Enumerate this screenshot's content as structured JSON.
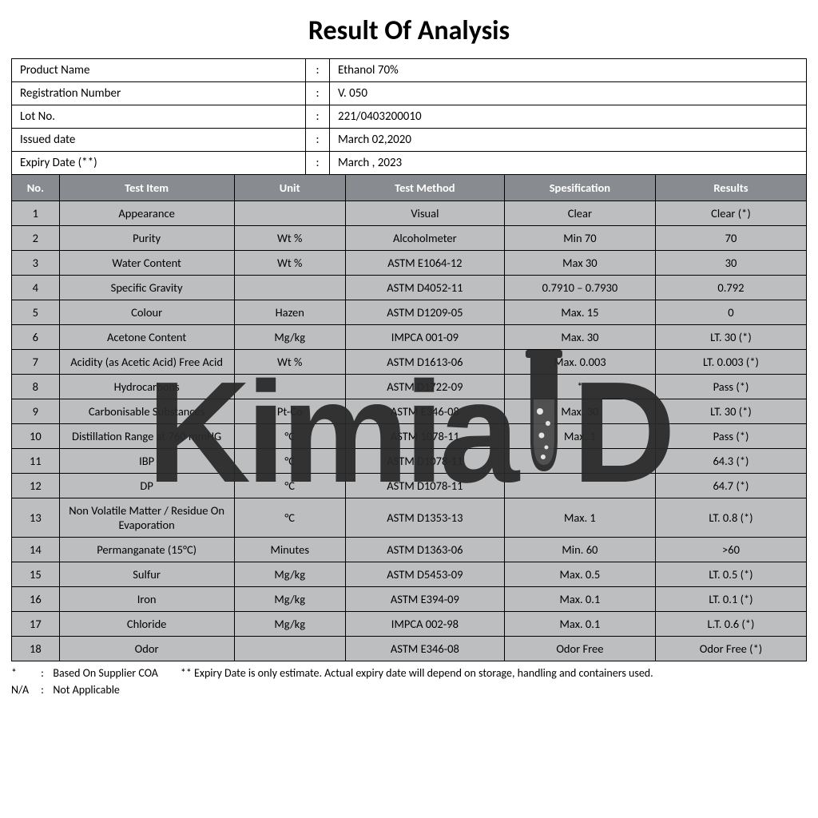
{
  "title": "Result Of Analysis",
  "info": {
    "product_name_label": "Product Name",
    "product_name": "Ethanol 70%",
    "reg_number_label": "Registration Number",
    "reg_number": "V. 050",
    "lot_no_label": "Lot No.",
    "lot_no": "221/0403200010",
    "issued_date_label": "Issued date",
    "issued_date": "March 02,2020",
    "expiry_date_label": "Expiry Date (**)",
    "expiry_date": "March , 2023"
  },
  "headers": {
    "no": "No.",
    "test_item": "Test Item",
    "unit": "Unit",
    "method": "Test Method",
    "spec": "Spesification",
    "results": "Results"
  },
  "rows": [
    {
      "no": "1",
      "item": "Appearance",
      "unit": "",
      "method": "Visual",
      "spec": "Clear",
      "result": "Clear (*)"
    },
    {
      "no": "2",
      "item": "Purity",
      "unit": "Wt %",
      "method": "Alcoholmeter",
      "spec": "Min 70",
      "result": "70"
    },
    {
      "no": "3",
      "item": "Water Content",
      "unit": "Wt %",
      "method": "ASTM E1064-12",
      "spec": "Max 30",
      "result": "30"
    },
    {
      "no": "4",
      "item": "Specific Gravity",
      "unit": "",
      "method": "ASTM D4052-11",
      "spec": "0.7910 – 0.7930",
      "result": "0.792"
    },
    {
      "no": "5",
      "item": "Colour",
      "unit": "Hazen",
      "method": "ASTM D1209-05",
      "spec": "Max. 15",
      "result": "0"
    },
    {
      "no": "6",
      "item": "Acetone Content",
      "unit": "Mg/kg",
      "method": "IMPCA 001-09",
      "spec": "Max. 30",
      "result": "LT. 30 (*)"
    },
    {
      "no": "7",
      "item": "Acidity (as Acetic Acid) Free Acid",
      "unit": "Wt %",
      "method": "ASTM D1613-06",
      "spec": "Max. 0.003",
      "result": "LT. 0.003 (*)"
    },
    {
      "no": "8",
      "item": "Hydrocarbons",
      "unit": "",
      "method": "ASTM D1722-09",
      "spec": "*",
      "result": "Pass (*)"
    },
    {
      "no": "9",
      "item": "Carbonisable Substances",
      "unit": "Pt-Co",
      "method": "ASTM E346-08",
      "spec": "Max. 30",
      "result": "LT. 30 (*)"
    },
    {
      "no": "10",
      "item": "Distillation Range at 760 mmHG",
      "unit": "°C",
      "method": "ASTM 1078-11",
      "spec": "Max. 1",
      "result": "Pass (*)"
    },
    {
      "no": "11",
      "item": "IBP",
      "unit": "°C",
      "method": "ASTM D1078-11",
      "spec": "",
      "result": "64.3 (*)"
    },
    {
      "no": "12",
      "item": "DP",
      "unit": "°C",
      "method": "ASTM D1078-11",
      "spec": "",
      "result": "64.7 (*)"
    },
    {
      "no": "13",
      "item": "Non Volatile Matter / Residue On Evaporation",
      "unit": "°C",
      "method": "ASTM D1353-13",
      "spec": "Max. 1",
      "result": "LT. 0.8 (*)"
    },
    {
      "no": "14",
      "item": "Permanganate (15°C)",
      "unit": "Minutes",
      "method": "ASTM D1363-06",
      "spec": "Min. 60",
      "result": ">60"
    },
    {
      "no": "15",
      "item": "Sulfur",
      "unit": "Mg/kg",
      "method": "ASTM D5453-09",
      "spec": "Max. 0.5",
      "result": "LT. 0.5 (*)"
    },
    {
      "no": "16",
      "item": "Iron",
      "unit": "Mg/kg",
      "method": "ASTM E394-09",
      "spec": "Max. 0.1",
      "result": "LT. 0.1 (*)"
    },
    {
      "no": "17",
      "item": "Chloride",
      "unit": "Mg/kg",
      "method": "IMPCA 002-98",
      "spec": "Max. 0.1",
      "result": "L.T. 0.6 (*)"
    },
    {
      "no": "18",
      "item": "Odor",
      "unit": "",
      "method": "ASTM E346-08",
      "spec": "Odor Free",
      "result": "Odor Free (*)"
    }
  ],
  "footnotes": {
    "star_sym": "*",
    "star_text": "Based On Supplier COA",
    "dstar_sym": "**",
    "dstar_text": "Expiry Date is only estimate. Actual expiry date will depend on storage, handling and containers used.",
    "na_sym": "N/A",
    "na_text": "Not Applicable"
  },
  "watermark": {
    "part1": "Kimia",
    "part2": "D"
  },
  "colors": {
    "header_bg": "#888b8f",
    "header_fg": "#ffffff",
    "row_bg": "#bcbec0",
    "border": "#000000",
    "text": "#000000",
    "watermark": "#2a2a2a"
  },
  "typography": {
    "title_fontsize_pt": 26,
    "body_fontsize_pt": 11,
    "watermark_fontsize_pt": 135
  },
  "table_meta": {
    "type": "table",
    "columns": [
      "No.",
      "Test Item",
      "Unit",
      "Test Method",
      "Spesification",
      "Results"
    ],
    "col_widths_pct": [
      6,
      22,
      14,
      20,
      19,
      19
    ]
  }
}
